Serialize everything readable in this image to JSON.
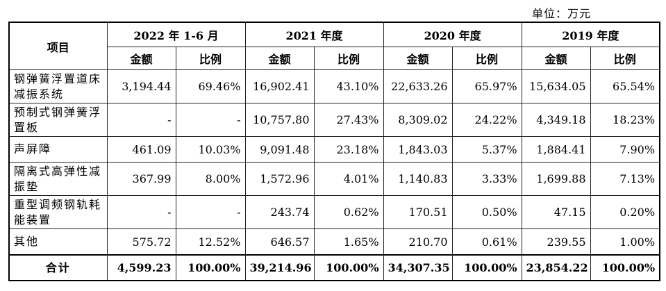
{
  "unit_label": "单位：万元",
  "header": {
    "item": "项目",
    "periods": [
      "2022 年 1-6 月",
      "2021 年度",
      "2020 年度",
      "2019 年度"
    ],
    "amount": "金额",
    "ratio": "比例"
  },
  "rows": [
    {
      "item": "钢弹簧浮置道床减振系统",
      "values": [
        "3,194.44",
        "69.46%",
        "16,902.41",
        "43.10%",
        "22,633.26",
        "65.97%",
        "15,634.05",
        "65.54%"
      ]
    },
    {
      "item": "预制式钢弹簧浮置板",
      "values": [
        "-",
        "-",
        "10,757.80",
        "27.43%",
        "8,309.02",
        "24.22%",
        "4,349.18",
        "18.23%"
      ]
    },
    {
      "item": "声屏障",
      "values": [
        "461.09",
        "10.03%",
        "9,091.48",
        "23.18%",
        "1,843.03",
        "5.37%",
        "1,884.41",
        "7.90%"
      ]
    },
    {
      "item": "隔离式高弹性减振垫",
      "values": [
        "367.99",
        "8.00%",
        "1,572.96",
        "4.01%",
        "1,140.83",
        "3.33%",
        "1,699.88",
        "7.13%"
      ]
    },
    {
      "item": "重型调频钢轨耗能装置",
      "values": [
        "-",
        "-",
        "243.74",
        "0.62%",
        "170.51",
        "0.50%",
        "47.15",
        "0.20%"
      ]
    },
    {
      "item": "其他",
      "values": [
        "575.72",
        "12.52%",
        "646.57",
        "1.65%",
        "210.70",
        "0.61%",
        "239.55",
        "1.00%"
      ]
    }
  ],
  "total": {
    "item": "合计",
    "values": [
      "4,599.23",
      "100.00%",
      "39,214.96",
      "100.00%",
      "34,307.35",
      "100.00%",
      "23,854.22",
      "100.00%"
    ]
  }
}
